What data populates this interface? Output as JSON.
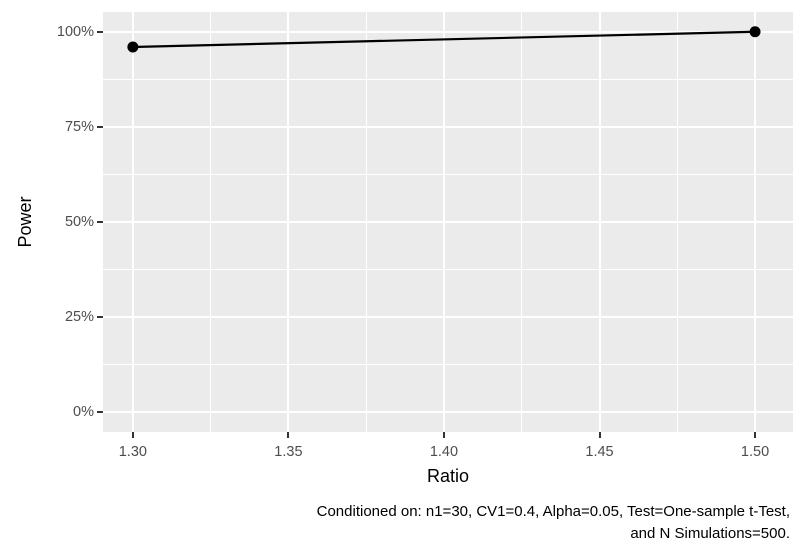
{
  "figure": {
    "caption_line1": "Conditioned on: n1=30, CV1=0.4, Alpha=0.05, Test=One-sample t-Test,",
    "caption_line2": "and N Simulations=500."
  },
  "chart_data": {
    "type": "line",
    "title": "",
    "xlabel": "Ratio",
    "ylabel": "Power",
    "series": [
      {
        "name": "Power",
        "points": [
          {
            "x": 1.3,
            "y": 96
          },
          {
            "x": 1.5,
            "y": 100
          }
        ]
      }
    ],
    "x_tick_values": [
      1.3,
      1.35,
      1.4,
      1.45,
      1.5
    ],
    "x_tick_labels": [
      "1.30",
      "1.35",
      "1.40",
      "1.45",
      "1.50"
    ],
    "y_tick_values": [
      0,
      25,
      50,
      75,
      100
    ],
    "y_tick_labels": [
      "0%",
      "25%",
      "50%",
      "75%",
      "100%"
    ],
    "x_minor_values": [
      1.325,
      1.375,
      1.425,
      1.475
    ],
    "y_minor_values": [
      12.5,
      37.5,
      62.5,
      87.5
    ],
    "xlim": [
      1.2904,
      1.5122
    ],
    "ylim": [
      -5.2,
      105.2
    ],
    "grid": true,
    "legend": "none",
    "colors": {
      "panel_bg": "#ebebeb",
      "grid": "#ffffff",
      "line": "#000000",
      "point": "#000000",
      "tick_label": "#4d4d4d",
      "axis_title": "#000000",
      "tick_mark": "#333333"
    }
  }
}
